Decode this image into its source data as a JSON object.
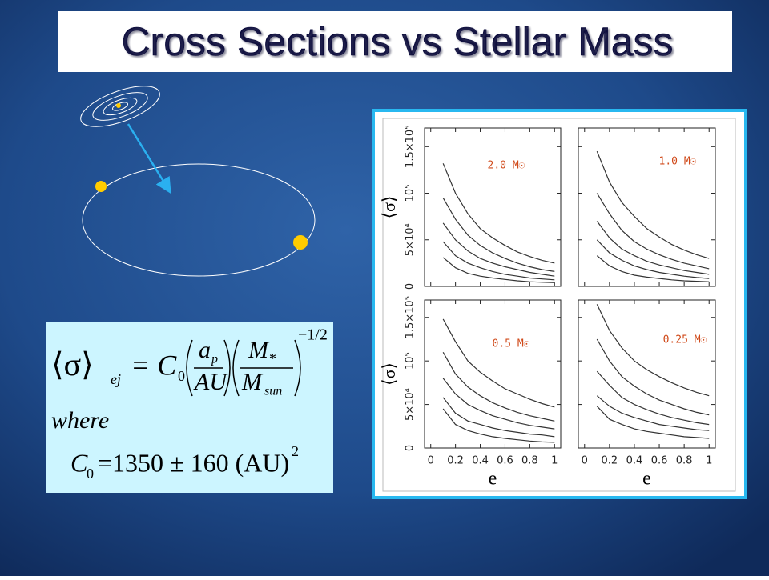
{
  "title": "Cross Sections vs Stellar Mass",
  "formula": {
    "parts": [
      "⟨σ⟩",
      "ej",
      "= C",
      "0",
      "a",
      "p",
      "AU",
      "M",
      "*",
      "M",
      "sun",
      "−1/2",
      "where",
      "C",
      "0",
      "=1350 ± 160 (AU)",
      "2"
    ]
  },
  "chart_data": [
    {
      "type": "line",
      "annotation": "2.0 M☉",
      "ylabel": "⟨σ⟩",
      "x": [
        0.1,
        0.2,
        0.3,
        0.4,
        0.5,
        0.6,
        0.7,
        0.8,
        0.9,
        1.0
      ],
      "xlim": [
        -0.05,
        1.05
      ],
      "xticks": [
        0,
        0.2,
        0.4,
        0.6,
        0.8,
        1
      ],
      "ylim": [
        0,
        170000
      ],
      "yticks": [
        0,
        {
          "value": 50000,
          "label": "5×10⁴"
        },
        {
          "value": 100000,
          "label": "10⁵"
        },
        {
          "value": 150000,
          "label": "1.5×10⁵"
        }
      ],
      "series": [
        {
          "color": "#333333",
          "values": [
            132000,
            100000,
            78000,
            62000,
            52000,
            44000,
            37000,
            32000,
            28000,
            25000
          ]
        },
        {
          "color": "#333333",
          "values": [
            95000,
            72000,
            55000,
            44000,
            36000,
            30000,
            25000,
            21000,
            18000,
            16000
          ]
        },
        {
          "color": "#333333",
          "values": [
            68000,
            50000,
            38000,
            30000,
            25000,
            21000,
            18000,
            15000,
            13000,
            11000
          ]
        },
        {
          "color": "#333333",
          "values": [
            48000,
            33000,
            25000,
            20000,
            16000,
            13000,
            11000,
            9000,
            8000,
            7000
          ]
        },
        {
          "color": "#333333",
          "values": [
            31000,
            20000,
            14000,
            11000,
            9000,
            7500,
            6000,
            5000,
            4500,
            4000
          ]
        }
      ]
    },
    {
      "type": "line",
      "annotation": "1.0 M☉",
      "x": [
        0.1,
        0.2,
        0.3,
        0.4,
        0.5,
        0.6,
        0.7,
        0.8,
        0.9,
        1.0
      ],
      "xlim": [
        -0.05,
        1.05
      ],
      "xticks": [
        0,
        0.2,
        0.4,
        0.6,
        0.8,
        1
      ],
      "ylim": [
        0,
        170000
      ],
      "yticks": [
        0,
        50000,
        100000,
        150000
      ],
      "series": [
        {
          "color": "#333333",
          "values": [
            145000,
            112000,
            90000,
            75000,
            62000,
            53000,
            45000,
            39000,
            34000,
            30000
          ]
        },
        {
          "color": "#333333",
          "values": [
            100000,
            78000,
            60000,
            48000,
            40000,
            34000,
            29000,
            25000,
            22000,
            19000
          ]
        },
        {
          "color": "#333333",
          "values": [
            70000,
            52000,
            40000,
            33000,
            27000,
            23000,
            20000,
            17000,
            15000,
            13000
          ]
        },
        {
          "color": "#333333",
          "values": [
            50000,
            36000,
            28000,
            22000,
            18000,
            15000,
            13000,
            11000,
            9500,
            8500
          ]
        },
        {
          "color": "#333333",
          "values": [
            33000,
            22000,
            16000,
            12000,
            10000,
            8500,
            7000,
            6000,
            5500,
            5000
          ]
        }
      ]
    },
    {
      "type": "line",
      "annotation": "0.5 M☉",
      "ylabel": "⟨σ⟩",
      "xlabel": "e",
      "x": [
        0.1,
        0.2,
        0.3,
        0.4,
        0.5,
        0.6,
        0.7,
        0.8,
        0.9,
        1.0
      ],
      "xlim": [
        -0.05,
        1.05
      ],
      "xticks": [
        0,
        0.2,
        0.4,
        0.6,
        0.8,
        1
      ],
      "ylim": [
        0,
        170000
      ],
      "yticks": [
        0,
        {
          "value": 50000,
          "label": "5×10⁴"
        },
        {
          "value": 100000,
          "label": "10⁵"
        },
        {
          "value": 150000,
          "label": "1.5×10⁵"
        }
      ],
      "series": [
        {
          "color": "#333333",
          "values": [
            148000,
            122000,
            100000,
            87000,
            77000,
            68000,
            62000,
            56000,
            51000,
            47000
          ]
        },
        {
          "color": "#333333",
          "values": [
            110000,
            85000,
            70000,
            60000,
            52000,
            46000,
            41000,
            37000,
            34000,
            31000
          ]
        },
        {
          "color": "#333333",
          "values": [
            80000,
            62000,
            50000,
            43000,
            37000,
            33000,
            29000,
            26000,
            24000,
            22000
          ]
        },
        {
          "color": "#333333",
          "values": [
            58000,
            40000,
            31000,
            27000,
            23000,
            20000,
            18000,
            16000,
            15000,
            13000
          ]
        },
        {
          "color": "#333333",
          "values": [
            45000,
            27000,
            20000,
            16000,
            13000,
            11000,
            9500,
            8000,
            7000,
            6500
          ]
        }
      ]
    },
    {
      "type": "line",
      "annotation": "0.25 M☉",
      "xlabel": "e",
      "x": [
        0.1,
        0.2,
        0.3,
        0.4,
        0.5,
        0.6,
        0.7,
        0.8,
        0.9,
        1.0
      ],
      "xlim": [
        -0.05,
        1.05
      ],
      "xticks": [
        0,
        0.2,
        0.4,
        0.6,
        0.8,
        1
      ],
      "ylim": [
        0,
        170000
      ],
      "yticks": [
        0,
        50000,
        100000,
        150000
      ],
      "series": [
        {
          "color": "#333333",
          "values": [
            165000,
            135000,
            115000,
            100000,
            90000,
            82000,
            75000,
            69000,
            64000,
            60000
          ]
        },
        {
          "color": "#333333",
          "values": [
            125000,
            100000,
            82000,
            71000,
            62000,
            55000,
            50000,
            45000,
            41000,
            38000
          ]
        },
        {
          "color": "#333333",
          "values": [
            88000,
            72000,
            58000,
            50000,
            44000,
            39000,
            35000,
            32000,
            29000,
            27000
          ]
        },
        {
          "color": "#333333",
          "values": [
            60000,
            48000,
            40000,
            35000,
            31000,
            27000,
            25000,
            23000,
            21000,
            20000
          ]
        },
        {
          "color": "#333333",
          "values": [
            48000,
            33000,
            27000,
            22000,
            19000,
            17000,
            15000,
            13000,
            12000,
            11000
          ]
        }
      ]
    }
  ]
}
